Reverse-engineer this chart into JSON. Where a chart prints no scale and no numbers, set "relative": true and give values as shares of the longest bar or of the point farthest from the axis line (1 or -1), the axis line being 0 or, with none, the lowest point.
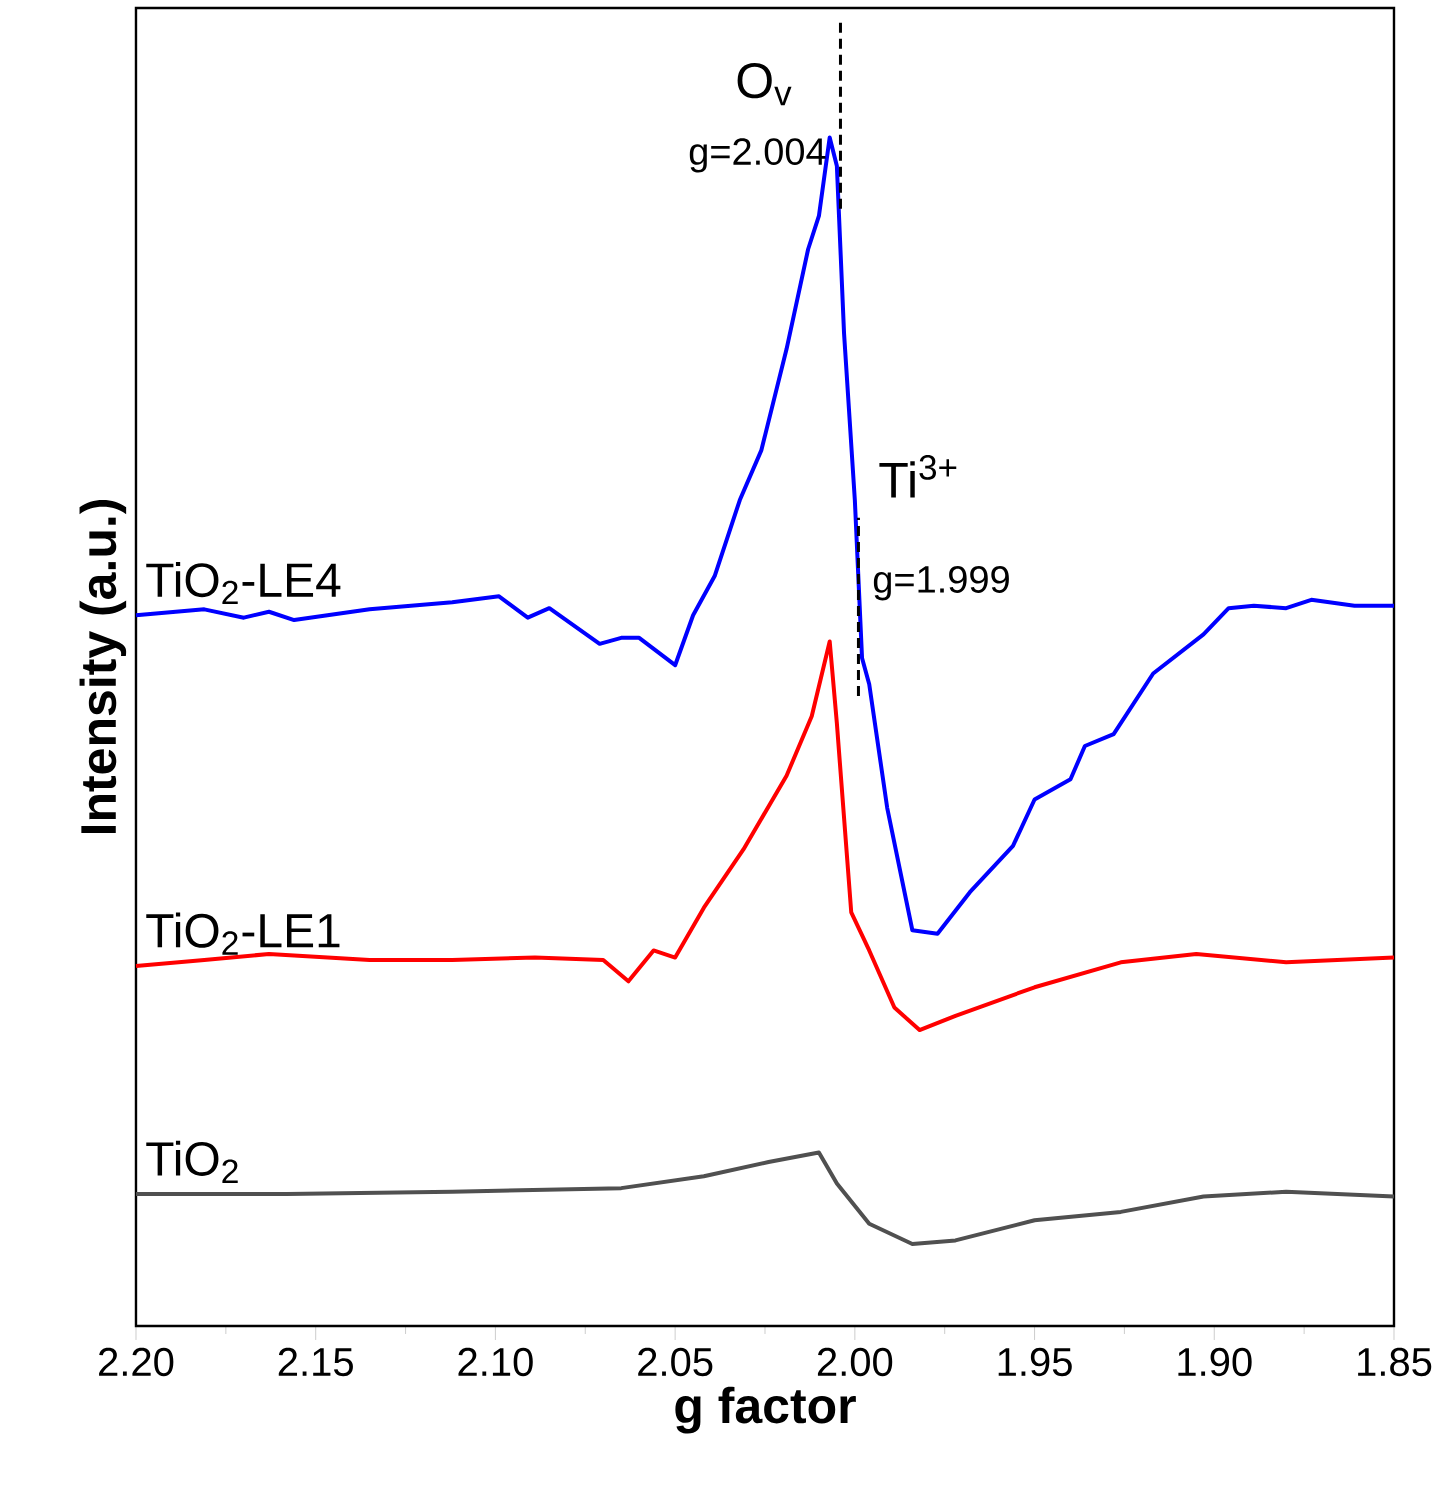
{
  "chart_data": {
    "type": "line",
    "xlabel": "g factor",
    "ylabel": "Intensity (a.u.)",
    "relative": true,
    "xlim": [
      2.2,
      1.85
    ],
    "xticks": [
      {
        "value": 2.2,
        "label": "2.20"
      },
      {
        "value": 2.15,
        "label": "2.15"
      },
      {
        "value": 2.1,
        "label": "2.10"
      },
      {
        "value": 2.05,
        "label": "2.05"
      },
      {
        "value": 2.0,
        "label": "2.00"
      },
      {
        "value": 1.95,
        "label": "1.95"
      },
      {
        "value": 1.9,
        "label": "1.90"
      },
      {
        "value": 1.85,
        "label": "1.85"
      }
    ],
    "series": [
      {
        "name": "TiO$_{2}$-LE4",
        "color": "#0000ff",
        "x": [
          2.2,
          2.181,
          2.17,
          2.163,
          2.156,
          2.135,
          2.112,
          2.099,
          2.091,
          2.085,
          2.071,
          2.065,
          2.06,
          2.05,
          2.045,
          2.039,
          2.032,
          2.026,
          2.019,
          2.013,
          2.01,
          2.007,
          2.005,
          2.003,
          2.0,
          1.998,
          1.996,
          1.991,
          1.984,
          1.977,
          1.968,
          1.956,
          1.95,
          1.94,
          1.936,
          1.928,
          1.917,
          1.903,
          1.896,
          1.889,
          1.88,
          1.873,
          1.861,
          1.85
        ],
        "values": [
          0.598,
          0.603,
          0.596,
          0.601,
          0.594,
          0.603,
          0.609,
          0.614,
          0.596,
          0.604,
          0.574,
          0.579,
          0.579,
          0.556,
          0.598,
          0.631,
          0.695,
          0.737,
          0.822,
          0.906,
          0.934,
          1.0,
          0.976,
          0.835,
          0.695,
          0.562,
          0.54,
          0.436,
          0.333,
          0.33,
          0.365,
          0.404,
          0.443,
          0.46,
          0.488,
          0.498,
          0.549,
          0.582,
          0.604,
          0.606,
          0.604,
          0.611,
          0.606,
          0.606
        ]
      },
      {
        "name": "TiO$_{2}$-LE1",
        "color": "#ff0000",
        "x": [
          2.2,
          2.181,
          2.163,
          2.135,
          2.112,
          2.089,
          2.07,
          2.063,
          2.056,
          2.05,
          2.042,
          2.031,
          2.019,
          2.012,
          2.007,
          2.005,
          2.001,
          1.996,
          1.989,
          1.982,
          1.972,
          1.95,
          1.926,
          1.905,
          1.88,
          1.85
        ],
        "values": [
          0.303,
          0.308,
          0.313,
          0.308,
          0.308,
          0.31,
          0.308,
          0.29,
          0.316,
          0.31,
          0.352,
          0.401,
          0.463,
          0.513,
          0.576,
          0.507,
          0.348,
          0.316,
          0.268,
          0.249,
          0.261,
          0.285,
          0.306,
          0.313,
          0.306,
          0.31
        ]
      },
      {
        "name": "TiO$_{2}$",
        "color": "#505050",
        "x": [
          2.2,
          2.158,
          2.112,
          2.065,
          2.042,
          2.024,
          2.01,
          2.005,
          1.996,
          1.984,
          1.972,
          1.95,
          1.926,
          1.903,
          1.88,
          1.85
        ],
        "values": [
          0.111,
          0.111,
          0.113,
          0.116,
          0.126,
          0.138,
          0.146,
          0.12,
          0.086,
          0.069,
          0.072,
          0.089,
          0.096,
          0.109,
          0.113,
          0.109
        ]
      }
    ],
    "annotations": [
      "O$_{v}$",
      "Ti$^{3+}$"
    ],
    "ref_lines": [
      {
        "axis": "x",
        "value": 2.004,
        "label": "g=2.004",
        "line_style": "dashed"
      },
      {
        "axis": "x",
        "value": 1.999,
        "label": "g=1.999",
        "line_style": "dashed"
      }
    ]
  }
}
